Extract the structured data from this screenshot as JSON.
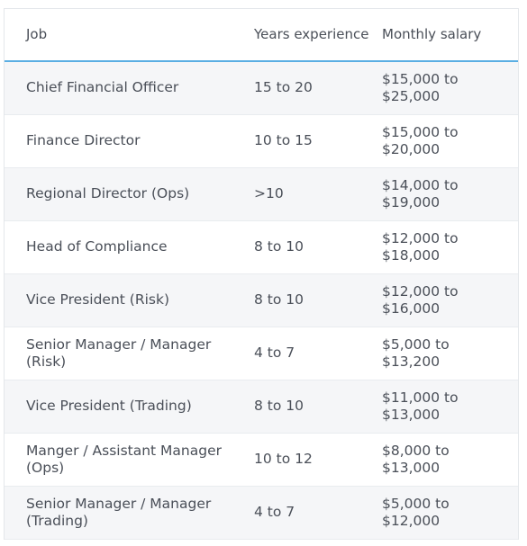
{
  "table": {
    "headers": {
      "job": "Job",
      "years": "Years experience",
      "salary": "Monthly salary"
    },
    "rows": [
      {
        "job": "Chief Financial Officer",
        "years": "15 to 20",
        "salary": "$15,000 to $25,000"
      },
      {
        "job": "Finance Director",
        "years": "10 to 15",
        "salary": "$15,000 to $20,000"
      },
      {
        "job": "Regional Director (Ops)",
        "years": ">10",
        "salary": "$14,000 to $19,000"
      },
      {
        "job": "Head of Compliance",
        "years": "8 to 10",
        "salary": "$12,000 to $18,000"
      },
      {
        "job": "Vice President (Risk)",
        "years": "8 to 10",
        "salary": "$12,000 to $16,000"
      },
      {
        "job": "Senior Manager / Manager (Risk)",
        "years": "4 to 7",
        "salary": "$5,000 to $13,200"
      },
      {
        "job": "Vice President (Trading)",
        "years": "8 to 10",
        "salary": "$11,000 to $13,000"
      },
      {
        "job": "Manger / Assistant Manager (Ops)",
        "years": "10 to 12",
        "salary": "$8,000 to $13,000"
      },
      {
        "job": "Senior Manager / Manager (Trading)",
        "years": "4 to 7",
        "salary": "$5,000 to $12,000"
      }
    ]
  }
}
